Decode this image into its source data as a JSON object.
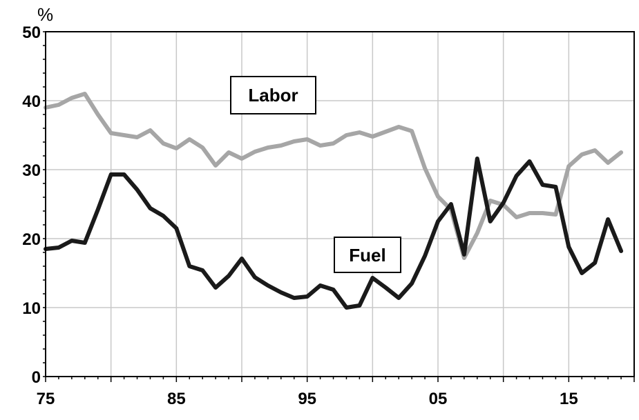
{
  "chart_data": {
    "type": "line",
    "title": "",
    "xlabel": "",
    "ylabel": "%",
    "xlim": [
      1975,
      2020
    ],
    "ylim": [
      0,
      50
    ],
    "grid": true,
    "legend": "none",
    "x_ticks": [
      {
        "value": 1975,
        "label": "75"
      },
      {
        "value": 1985,
        "label": "85"
      },
      {
        "value": 1995,
        "label": "95"
      },
      {
        "value": 2005,
        "label": "05"
      },
      {
        "value": 2015,
        "label": "15"
      }
    ],
    "y_ticks": [
      {
        "value": 0,
        "label": "0"
      },
      {
        "value": 10,
        "label": "10"
      },
      {
        "value": 20,
        "label": "20"
      },
      {
        "value": 30,
        "label": "30"
      },
      {
        "value": 40,
        "label": "40"
      },
      {
        "value": 50,
        "label": "50"
      }
    ],
    "x": [
      1975,
      1976,
      1977,
      1978,
      1979,
      1980,
      1981,
      1982,
      1983,
      1984,
      1985,
      1986,
      1987,
      1988,
      1989,
      1990,
      1991,
      1992,
      1993,
      1994,
      1995,
      1996,
      1997,
      1998,
      1999,
      2000,
      2001,
      2002,
      2003,
      2004,
      2005,
      2006,
      2007,
      2008,
      2009,
      2010,
      2011,
      2012,
      2013,
      2014,
      2015,
      2016,
      2017,
      2018,
      2019
    ],
    "series": [
      {
        "name": "Labor",
        "color": "#a6a6a6",
        "values": [
          39.0,
          39.4,
          40.4,
          41.0,
          38.0,
          35.3,
          35.0,
          34.7,
          35.7,
          33.8,
          33.1,
          34.4,
          33.2,
          30.6,
          32.5,
          31.6,
          32.6,
          33.2,
          33.5,
          34.1,
          34.4,
          33.5,
          33.8,
          35.0,
          35.4,
          34.8,
          35.5,
          36.2,
          35.6,
          30.2,
          26.1,
          24.2,
          17.2,
          20.8,
          25.5,
          24.9,
          23.1,
          23.7,
          23.7,
          23.5,
          30.5,
          32.2,
          32.8,
          31.0,
          32.5
        ]
      },
      {
        "name": "Fuel",
        "color": "#1a1a1a",
        "values": [
          18.5,
          18.7,
          19.7,
          19.4,
          24.2,
          29.3,
          29.3,
          27.1,
          24.4,
          23.3,
          21.5,
          16.0,
          15.4,
          12.9,
          14.6,
          17.1,
          14.4,
          13.2,
          12.2,
          11.4,
          11.6,
          13.2,
          12.6,
          10.0,
          10.3,
          14.3,
          12.9,
          11.4,
          13.5,
          17.5,
          22.5,
          25.0,
          17.7,
          31.6,
          22.5,
          25.2,
          29.1,
          31.2,
          27.8,
          27.5,
          18.8,
          15.0,
          16.5,
          22.8,
          18.2
        ]
      }
    ]
  },
  "series_labels": {
    "labor": "Labor",
    "fuel": "Fuel"
  }
}
